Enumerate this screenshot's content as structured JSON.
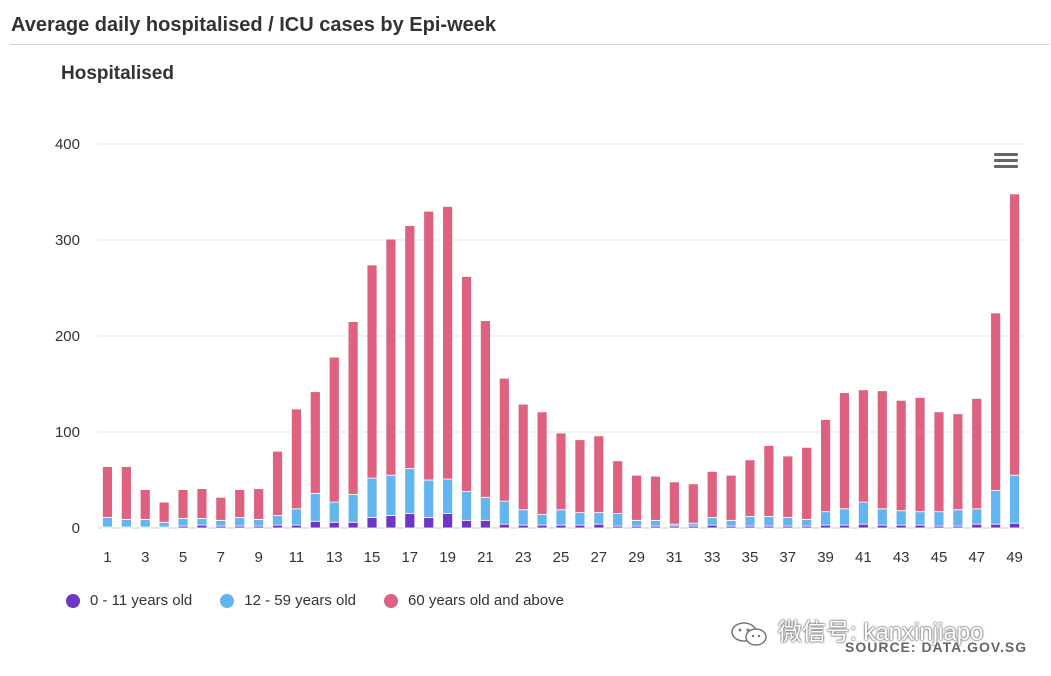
{
  "header": {
    "title": "Average daily hospitalised / ICU cases by Epi-week"
  },
  "watermark": {
    "text": "微信号: kanxinjiapo"
  },
  "source": {
    "text": "SOURCE: DATA.GOV.SG"
  },
  "icons": {
    "menu": "hamburger-menu-icon",
    "wechat": "wechat-icon"
  },
  "chart_data": {
    "type": "bar",
    "stacked": true,
    "title": "Hospitalised",
    "xlabel": "",
    "ylabel": "",
    "ylim": [
      0,
      400
    ],
    "yticks": [
      0,
      100,
      200,
      300,
      400
    ],
    "grid": true,
    "legend_position": "bottom-left",
    "categories": [
      "1",
      "2",
      "3",
      "4",
      "5",
      "6",
      "7",
      "8",
      "9",
      "10",
      "11",
      "12",
      "13",
      "14",
      "15",
      "16",
      "17",
      "18",
      "19",
      "20",
      "21",
      "22",
      "23",
      "24",
      "25",
      "26",
      "27",
      "28",
      "29",
      "30",
      "31",
      "32",
      "33",
      "34",
      "35",
      "36",
      "37",
      "38",
      "39",
      "40",
      "41",
      "42",
      "43",
      "44",
      "45",
      "46",
      "47",
      "48",
      "49"
    ],
    "xtick_labels": [
      "1",
      "3",
      "5",
      "7",
      "9",
      "11",
      "13",
      "15",
      "17",
      "19",
      "21",
      "23",
      "25",
      "27",
      "29",
      "31",
      "33",
      "35",
      "37",
      "39",
      "41",
      "43",
      "45",
      "47",
      "49"
    ],
    "series": [
      {
        "name": "0 - 11 years old",
        "color": "#6f35c4",
        "values": [
          1,
          1,
          1,
          1,
          2,
          3,
          2,
          2,
          2,
          3,
          3,
          7,
          6,
          6,
          11,
          13,
          15,
          11,
          15,
          8,
          8,
          4,
          3,
          3,
          3,
          3,
          4,
          2,
          2,
          2,
          2,
          2,
          3,
          2,
          2,
          2,
          2,
          2,
          3,
          3,
          4,
          3,
          3,
          3,
          2,
          2,
          4,
          4,
          5
        ]
      },
      {
        "name": "12 - 59 years old",
        "color": "#62b5ef",
        "values": [
          10,
          8,
          8,
          5,
          8,
          7,
          6,
          9,
          7,
          10,
          17,
          29,
          21,
          29,
          41,
          42,
          47,
          39,
          36,
          30,
          24,
          24,
          16,
          11,
          16,
          13,
          12,
          13,
          6,
          6,
          2,
          3,
          8,
          6,
          10,
          10,
          9,
          7,
          14,
          17,
          23,
          17,
          15,
          14,
          15,
          17,
          16,
          35,
          50
        ]
      },
      {
        "name": "60 years old and above",
        "color": "#de6180",
        "values": [
          53,
          55,
          31,
          21,
          30,
          31,
          24,
          29,
          32,
          67,
          104,
          106,
          151,
          180,
          222,
          246,
          253,
          280,
          284,
          224,
          184,
          128,
          110,
          107,
          80,
          76,
          80,
          55,
          47,
          46,
          44,
          41,
          48,
          47,
          59,
          74,
          64,
          75,
          96,
          121,
          117,
          123,
          115,
          119,
          104,
          100,
          115,
          185,
          293
        ]
      }
    ]
  }
}
